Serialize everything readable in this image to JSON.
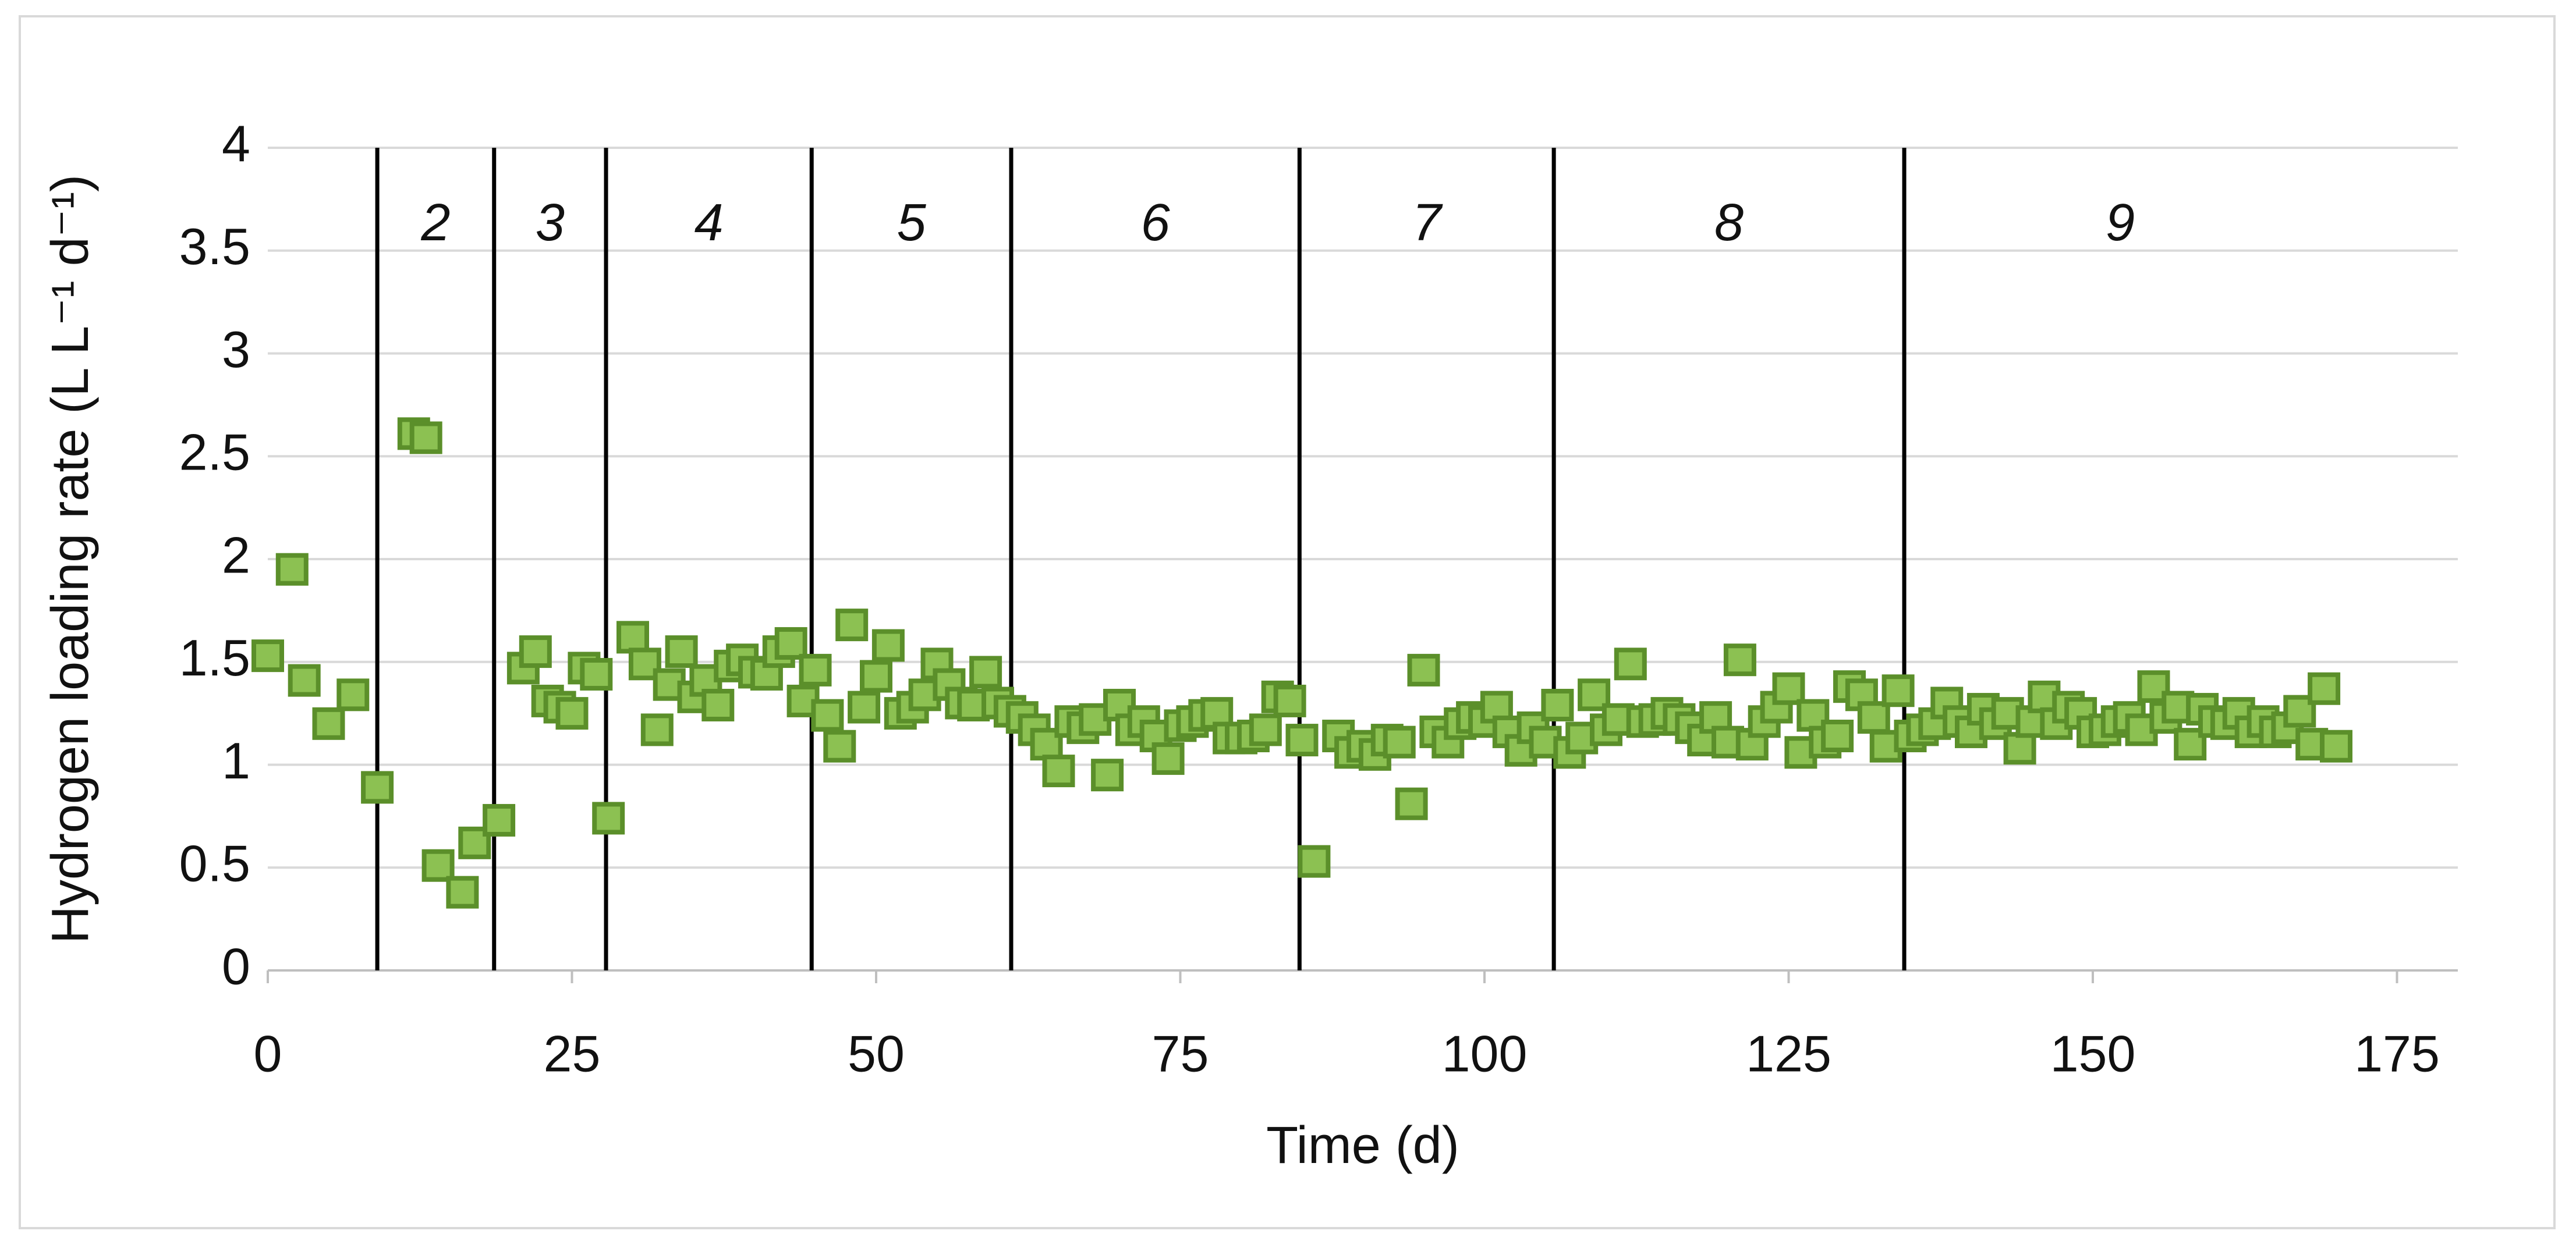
{
  "chart_data": {
    "type": "scatter",
    "x_label": "Time (d)",
    "y_label": "Hydrogen loading rate (L L⁻¹ d⁻¹)",
    "xlim": [
      0,
      180
    ],
    "xticks": [
      0,
      25,
      50,
      75,
      100,
      125,
      150,
      175
    ],
    "ylim": [
      0,
      4
    ],
    "yticks": [
      0,
      0.5,
      1,
      1.5,
      2,
      2.5,
      3,
      3.5,
      4
    ],
    "grid": true,
    "color": "#8cc152",
    "edge_color": "#5b8f2a",
    "phase_boundaries": [
      9,
      18.6,
      27.8,
      44.7,
      61.1,
      84.8,
      105.7,
      134.5
    ],
    "phase_labels": [
      "2",
      "3",
      "4",
      "5",
      "6",
      "7",
      "8",
      "9"
    ],
    "x": [
      0,
      2,
      3,
      5,
      7,
      9,
      12,
      13,
      14,
      16,
      17,
      19,
      21,
      22,
      23,
      24,
      25,
      26,
      27,
      28,
      30,
      31,
      32,
      33,
      34,
      35,
      36,
      37,
      38,
      39,
      40,
      41,
      42,
      43,
      44,
      45,
      46,
      47,
      48,
      49,
      50,
      51,
      52,
      53,
      54,
      55,
      56,
      57,
      58,
      59,
      60,
      61,
      62,
      63,
      64,
      65,
      66,
      67,
      68,
      69,
      70,
      71,
      72,
      73,
      74,
      75,
      76,
      77,
      78,
      79,
      80,
      81,
      82,
      83,
      84,
      85,
      86,
      88,
      89,
      90,
      91,
      92,
      93,
      94,
      95,
      96,
      97,
      98,
      99,
      100,
      101,
      102,
      103,
      104,
      105,
      106,
      107,
      108,
      109,
      110,
      111,
      112,
      113,
      114,
      115,
      116,
      117,
      118,
      119,
      120,
      121,
      122,
      123,
      124,
      125,
      126,
      127,
      128,
      129,
      130,
      131,
      132,
      133,
      134,
      135,
      136,
      137,
      138,
      139,
      140,
      141,
      142,
      143,
      144,
      145,
      146,
      147,
      148,
      149,
      150,
      151,
      152,
      153,
      154,
      155,
      156,
      157,
      158,
      159,
      160,
      161,
      162,
      163,
      164,
      165,
      166,
      167,
      168,
      169,
      170
    ],
    "values": [
      1.53,
      1.95,
      1.41,
      1.2,
      1.34,
      0.89,
      2.61,
      2.59,
      0.51,
      0.38,
      0.62,
      0.73,
      1.47,
      1.55,
      1.31,
      1.28,
      1.25,
      1.47,
      1.44,
      0.74,
      1.62,
      1.49,
      1.17,
      1.39,
      1.55,
      1.33,
      1.41,
      1.29,
      1.48,
      1.51,
      1.45,
      1.44,
      1.55,
      1.59,
      1.31,
      1.46,
      1.24,
      1.09,
      1.68,
      1.28,
      1.43,
      1.58,
      1.25,
      1.28,
      1.34,
      1.49,
      1.39,
      1.3,
      1.29,
      1.45,
      1.3,
      1.26,
      1.23,
      1.17,
      1.1,
      0.97,
      1.21,
      1.18,
      1.22,
      0.95,
      1.29,
      1.17,
      1.21,
      1.14,
      1.03,
      1.19,
      1.21,
      1.24,
      1.25,
      1.13,
      1.13,
      1.14,
      1.17,
      1.33,
      1.31,
      1.12,
      0.53,
      1.14,
      1.06,
      1.09,
      1.05,
      1.12,
      1.11,
      0.81,
      1.46,
      1.16,
      1.11,
      1.2,
      1.23,
      1.21,
      1.28,
      1.16,
      1.07,
      1.18,
      1.11,
      1.29,
      1.06,
      1.13,
      1.34,
      1.17,
      1.22,
      1.49,
      1.21,
      1.22,
      1.25,
      1.22,
      1.18,
      1.12,
      1.23,
      1.11,
      1.51,
      1.1,
      1.21,
      1.28,
      1.37,
      1.06,
      1.24,
      1.11,
      1.14,
      1.38,
      1.34,
      1.23,
      1.09,
      1.36,
      1.14,
      1.17,
      1.2,
      1.3,
      1.21,
      1.16,
      1.27,
      1.2,
      1.25,
      1.08,
      1.21,
      1.33,
      1.2,
      1.28,
      1.25,
      1.16,
      1.17,
      1.21,
      1.23,
      1.17,
      1.38,
      1.23,
      1.28,
      1.1,
      1.27,
      1.21,
      1.2,
      1.25,
      1.16,
      1.21,
      1.16,
      1.18,
      1.26,
      1.1,
      1.37,
      1.09
    ]
  }
}
